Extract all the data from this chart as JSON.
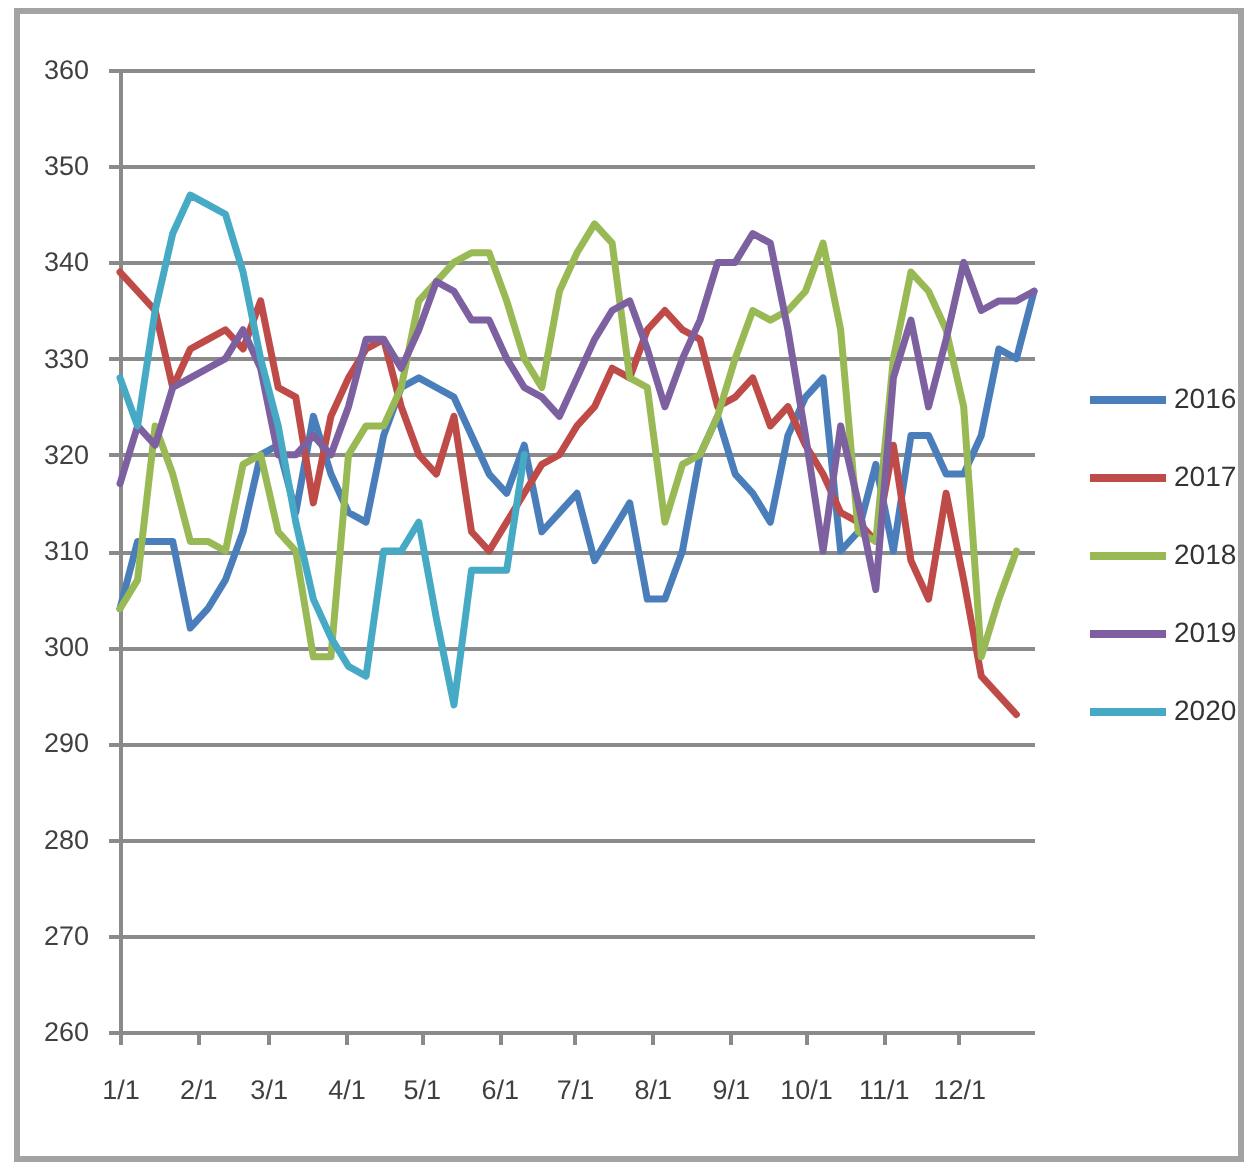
{
  "chart_data": {
    "type": "line",
    "x": [
      "--01-01",
      "--01-08",
      "--01-15",
      "--01-22",
      "--01-29",
      "--02-05",
      "--02-12",
      "--02-19",
      "--02-26",
      "--03-05",
      "--03-12",
      "--03-19",
      "--03-26",
      "--04-02",
      "--04-09",
      "--04-16",
      "--04-23",
      "--04-30",
      "--05-07",
      "--05-14",
      "--05-21",
      "--05-28",
      "--06-04",
      "--06-11",
      "--06-18",
      "--06-25",
      "--07-02",
      "--07-09",
      "--07-16",
      "--07-23",
      "--07-30",
      "--08-06",
      "--08-13",
      "--08-20",
      "--08-27",
      "--09-03",
      "--09-10",
      "--09-17",
      "--09-24",
      "--10-01",
      "--10-08",
      "--10-15",
      "--10-22",
      "--10-29",
      "--11-05",
      "--11-12",
      "--11-19",
      "--11-26",
      "--12-03",
      "--12-10",
      "--12-17",
      "--12-24",
      "--12-31"
    ],
    "series": [
      {
        "name": "2016",
        "color": "#4a7ebb",
        "values": [
          304,
          311,
          311,
          311,
          302,
          304,
          307,
          312,
          320,
          321,
          314,
          324,
          318,
          314,
          313,
          322,
          327,
          328,
          327,
          326,
          322,
          318,
          316,
          321,
          312,
          314,
          316,
          309,
          312,
          315,
          305,
          305,
          310,
          320,
          324,
          318,
          316,
          313,
          322,
          326,
          328,
          310,
          312,
          319,
          310,
          322,
          322,
          318,
          318,
          322,
          331,
          330,
          337
        ]
      },
      {
        "name": "2017",
        "color": "#be4b48",
        "values": [
          339,
          337,
          335,
          327,
          331,
          332,
          333,
          331,
          336,
          327,
          326,
          315,
          324,
          328,
          331,
          332,
          325,
          320,
          318,
          324,
          312,
          310,
          313,
          316,
          319,
          320,
          323,
          325,
          329,
          328,
          333,
          335,
          333,
          332,
          325,
          326,
          328,
          323,
          325,
          321,
          318,
          314,
          313,
          311,
          321,
          309,
          305,
          316,
          307,
          297,
          295,
          293,
          null
        ]
      },
      {
        "name": "2018",
        "color": "#98b954",
        "values": [
          304,
          307,
          323,
          318,
          311,
          311,
          310,
          319,
          320,
          312,
          310,
          299,
          299,
          320,
          323,
          323,
          327,
          336,
          338,
          340,
          341,
          341,
          336,
          330,
          327,
          337,
          341,
          344,
          342,
          328,
          327,
          313,
          319,
          320,
          324,
          330,
          335,
          334,
          335,
          337,
          342,
          333,
          312,
          311,
          330,
          339,
          337,
          333,
          325,
          299,
          305,
          310,
          null
        ]
      },
      {
        "name": "2019",
        "color": "#7d60a0",
        "values": [
          317,
          323,
          321,
          327,
          328,
          329,
          330,
          333,
          329,
          320,
          320,
          322,
          320,
          325,
          332,
          332,
          329,
          333,
          338,
          337,
          334,
          334,
          330,
          327,
          326,
          324,
          328,
          332,
          335,
          336,
          331,
          325,
          330,
          334,
          340,
          340,
          343,
          342,
          333,
          322,
          310,
          323,
          315,
          306,
          328,
          334,
          325,
          332,
          340,
          335,
          336,
          336,
          337
        ]
      },
      {
        "name": "2020",
        "color": "#46aac5",
        "values": [
          328,
          323,
          335,
          343,
          347,
          346,
          345,
          339,
          330,
          323,
          313,
          305,
          301,
          298,
          297,
          310,
          310,
          313,
          303,
          294,
          308,
          308,
          308,
          320,
          null,
          null,
          null,
          null,
          null,
          null,
          null,
          null,
          null,
          null,
          null,
          null,
          null,
          null,
          null,
          null,
          null,
          null,
          null,
          null,
          null,
          null,
          null,
          null,
          null,
          null,
          null,
          null,
          null
        ]
      }
    ],
    "xlim": [
      "--01-01",
      "--12-31"
    ],
    "xticks": [
      {
        "value": "--01-01",
        "label": "1/1"
      },
      {
        "value": "--02-01",
        "label": "2/1"
      },
      {
        "value": "--03-01",
        "label": "3/1"
      },
      {
        "value": "--04-01",
        "label": "4/1"
      },
      {
        "value": "--05-01",
        "label": "5/1"
      },
      {
        "value": "--06-01",
        "label": "6/1"
      },
      {
        "value": "--07-01",
        "label": "7/1"
      },
      {
        "value": "--08-01",
        "label": "8/1"
      },
      {
        "value": "--09-01",
        "label": "9/1"
      },
      {
        "value": "--10-01",
        "label": "10/1"
      },
      {
        "value": "--11-01",
        "label": "11/1"
      },
      {
        "value": "--12-01",
        "label": "12/1"
      }
    ],
    "ylim": [
      260,
      360
    ],
    "yticks": [
      260,
      270,
      280,
      290,
      300,
      310,
      320,
      330,
      340,
      350,
      360
    ],
    "grid": "y",
    "legend": "right",
    "line_style": "solid"
  }
}
